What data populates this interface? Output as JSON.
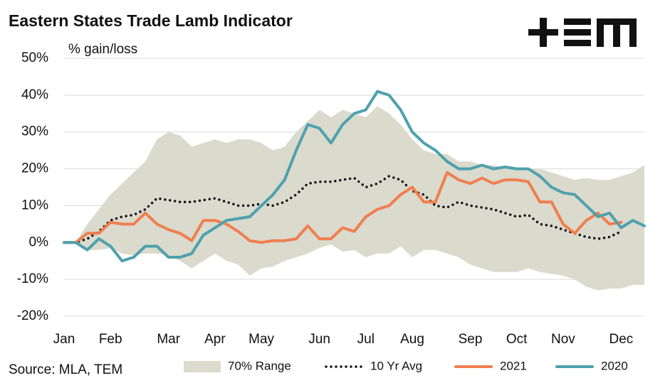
{
  "chart_data": {
    "type": "line",
    "title": "Eastern States Trade Lamb Indicator",
    "y_label": "% gain/loss",
    "source": "Source: MLA, TEM",
    "categories": [
      "Jan",
      null,
      null,
      null,
      "Feb",
      null,
      null,
      null,
      null,
      "Mar",
      null,
      null,
      null,
      "Apr",
      null,
      null,
      null,
      "May",
      null,
      null,
      null,
      null,
      "Jun",
      null,
      null,
      null,
      "Jul",
      null,
      null,
      null,
      "Aug",
      null,
      null,
      null,
      null,
      "Sep",
      null,
      null,
      null,
      "Oct",
      null,
      null,
      null,
      "Nov",
      null,
      null,
      null,
      null,
      "Dec",
      null,
      null
    ],
    "ylim": [
      -20,
      50
    ],
    "yticks": [
      {
        "value": -20,
        "label": "-20%"
      },
      {
        "value": -10,
        "label": "-10%"
      },
      {
        "value": 0,
        "label": "0%"
      },
      {
        "value": 10,
        "label": "10%"
      },
      {
        "value": 20,
        "label": "20%"
      },
      {
        "value": 30,
        "label": "30%"
      },
      {
        "value": 40,
        "label": "40%"
      },
      {
        "value": 50,
        "label": "50%"
      }
    ],
    "grid": true,
    "series": [
      {
        "name": "70% Range",
        "kind": "range",
        "color": "#dadacd",
        "upper": [
          0,
          0,
          5,
          9,
          13,
          16,
          19,
          22,
          28,
          30,
          29,
          26,
          27,
          28,
          27,
          28,
          28,
          27,
          25,
          26,
          30,
          33,
          36,
          34,
          36,
          35,
          34,
          37,
          35,
          32,
          28,
          25,
          24,
          24,
          22,
          22,
          21,
          21,
          20,
          20,
          20,
          20,
          19,
          18,
          17,
          17.5,
          17,
          17,
          18,
          19,
          21
        ],
        "lower": [
          0,
          0,
          -2,
          -2,
          -1.5,
          -3,
          -3.5,
          -3,
          -3,
          -3.5,
          -5,
          -7,
          -5,
          -3,
          -5,
          -6,
          -9,
          -7,
          -6.5,
          -5,
          -4,
          -3,
          -1.5,
          -0.5,
          -2.5,
          -2,
          -4,
          -3,
          -3,
          -1,
          -4,
          -2,
          -2,
          -3,
          -4,
          -6,
          -7,
          -8,
          -8,
          -8,
          -7,
          -8,
          -8.5,
          -9,
          -10,
          -12,
          -13,
          -12.5,
          -12.5,
          -11.5,
          -11.5
        ]
      },
      {
        "name": "10 Yr Avg",
        "kind": "dotted",
        "color": "#111111",
        "values": [
          0,
          0,
          1,
          3,
          6,
          7,
          7.5,
          9,
          12,
          11.5,
          11,
          11,
          11.5,
          12,
          11,
          10,
          10,
          10.5,
          10,
          11,
          13,
          16,
          16.5,
          16.5,
          17,
          17.5,
          15,
          16,
          18,
          17,
          14,
          13,
          10,
          9.5,
          11,
          10,
          9.5,
          9,
          8,
          7,
          7.5,
          5,
          4.5,
          3.5,
          2.5,
          1.5,
          1,
          1.5,
          3,
          null,
          null
        ]
      },
      {
        "name": "2021",
        "kind": "line",
        "color": "#f07f4f",
        "values": [
          0,
          0,
          2.5,
          2.5,
          5.5,
          5,
          5,
          8,
          5,
          3.5,
          2.5,
          0.5,
          6,
          6,
          5,
          3,
          0.5,
          0,
          0.5,
          0.5,
          1,
          4.5,
          1,
          1,
          4,
          3,
          7,
          9,
          10,
          13,
          15,
          11,
          11,
          19,
          17,
          16,
          17.5,
          16,
          17,
          17,
          16.5,
          11,
          11,
          5,
          2.5,
          6,
          8,
          5,
          5.5,
          null,
          null
        ]
      },
      {
        "name": "2020",
        "kind": "line",
        "color": "#4fa1ad",
        "values": [
          0,
          0,
          -2,
          1,
          -1,
          -5,
          -4,
          -1,
          -1,
          -4,
          -4,
          -3,
          2,
          4,
          6,
          6.5,
          7,
          10,
          13,
          17,
          25,
          32,
          31,
          27,
          32,
          35,
          36,
          41,
          40,
          36,
          30,
          27,
          25,
          22,
          20,
          20,
          21,
          20,
          20.5,
          20,
          20,
          18,
          15,
          13.5,
          13,
          10,
          7,
          8,
          4,
          6,
          4.5
        ]
      }
    ]
  }
}
